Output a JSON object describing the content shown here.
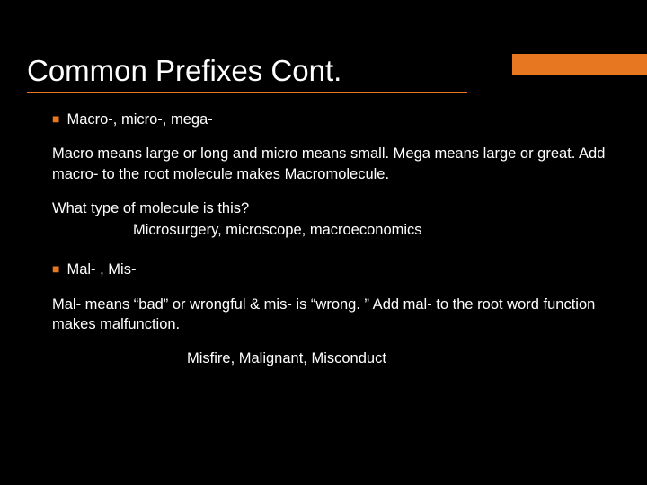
{
  "slide": {
    "title": "Common Prefixes Cont.",
    "accent_color": "#e87722",
    "background_color": "#000000",
    "text_color": "#ffffff",
    "title_fontsize": 33,
    "body_fontsize": 16.5,
    "bullet1": "Macro-, micro-, mega-",
    "para1": "Macro means large or long and micro means small. Mega means large or great. Add macro- to the root molecule makes Macromolecule.",
    "question1": "What type of molecule is this?",
    "examples1": "Microsurgery, microscope, macroeconomics",
    "bullet2": "Mal- , Mis-",
    "para2": "Mal- means “bad” or wrongful & mis- is “wrong. ” Add mal- to the root word function makes malfunction.",
    "examples2": "Misfire, Malignant, Misconduct"
  }
}
